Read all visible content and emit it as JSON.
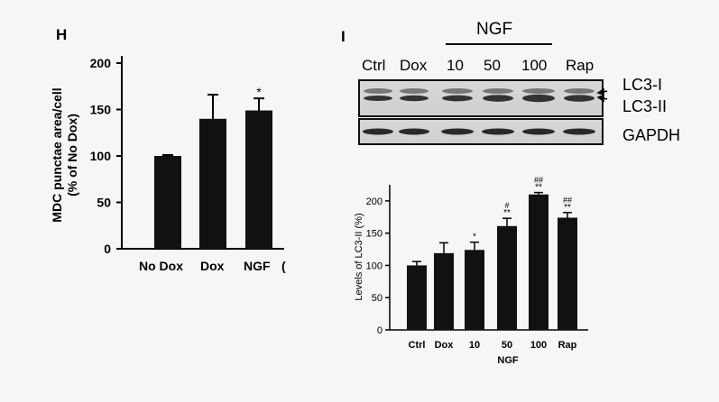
{
  "panel_letters": {
    "h": "H",
    "i": "I"
  },
  "blot": {
    "lanes": [
      "Ctrl",
      "Dox",
      "10",
      "50",
      "100",
      "Rap"
    ],
    "group_label": "NGF",
    "bands": [
      "LC3-I",
      "LC3-II",
      "GAPDH"
    ]
  },
  "chart_data": [
    {
      "type": "bar",
      "panel": "H",
      "categories": [
        "No Dox",
        "Dox",
        "NGF"
      ],
      "values": [
        100,
        140,
        149
      ],
      "errors": [
        1,
        26,
        13
      ],
      "significance": [
        "",
        "",
        "*"
      ],
      "title": "",
      "xlabel": "",
      "ylabel": "MDC punctae area/cell",
      "ylabel2": "(% of No Dox)",
      "ylim": [
        0,
        200
      ],
      "yticks": [
        "0",
        "50",
        "100",
        "150",
        "200"
      ],
      "edge_label": "(",
      "bar_color": "#111111",
      "grid": false
    },
    {
      "type": "bar",
      "panel": "I",
      "categories": [
        "Ctrl",
        "Dox",
        "10",
        "50",
        "100",
        "Rap"
      ],
      "values": [
        100,
        119,
        124,
        161,
        210,
        174
      ],
      "errors": [
        6,
        16,
        12,
        12,
        3,
        8
      ],
      "significance": [
        [
          "",
          ""
        ],
        [
          "",
          ""
        ],
        [
          "*",
          ""
        ],
        [
          "**",
          "#"
        ],
        [
          "**",
          "##"
        ],
        [
          "**",
          "##"
        ]
      ],
      "title": "",
      "xlabel": "NGF",
      "ylabel": "Levels of LC3-II (%)",
      "ylim": [
        0,
        225
      ],
      "yticks": [
        "0",
        "50",
        "100",
        "150",
        "200"
      ],
      "bar_color": "#111111",
      "grid": false
    }
  ]
}
